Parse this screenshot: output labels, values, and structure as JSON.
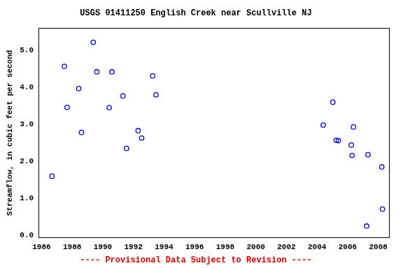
{
  "chart_data": {
    "type": "scatter",
    "title": "USGS 01411250 English Creek near Scullville NJ",
    "subtitle": "---- Provisional Data Subject to Revision ----",
    "y_label": "Streamflow, in cubic feet per second",
    "series": [
      {
        "name": "Streamflow",
        "color": "#0000cc",
        "marker": "open circle",
        "x": [
          1986.68,
          1987.49,
          1987.67,
          1988.43,
          1988.61,
          1989.38,
          1989.61,
          1990.42,
          1990.6,
          1991.32,
          1991.55,
          1992.31,
          1992.54,
          1993.26,
          1993.48,
          2004.4,
          2005.03,
          2005.25,
          2005.39,
          2006.24,
          2006.29,
          2006.38,
          2007.33,
          2007.24,
          2008.23,
          2008.27
        ],
        "values": [
          1.6,
          4.57,
          3.46,
          3.97,
          2.78,
          5.22,
          4.42,
          3.45,
          4.42,
          3.77,
          2.35,
          2.83,
          2.63,
          4.31,
          3.8,
          2.98,
          3.6,
          2.57,
          2.56,
          2.44,
          2.16,
          2.93,
          2.18,
          0.25,
          1.85,
          0.71
        ]
      }
    ],
    "xlim": [
      1985.8,
      2008.7
    ],
    "xticks": [
      1986,
      1988,
      1990,
      1992,
      1994,
      1996,
      1998,
      2000,
      2002,
      2004,
      2006,
      2008
    ],
    "ylim": [
      -0.06,
      5.6
    ],
    "yticks": [
      {
        "value": 0,
        "label": "0.0"
      },
      {
        "value": 1,
        "label": "1.0"
      },
      {
        "value": 2,
        "label": "2.0"
      },
      {
        "value": 3,
        "label": "3.0"
      },
      {
        "value": 4,
        "label": "4.0"
      },
      {
        "value": 5,
        "label": "5.0"
      }
    ],
    "grid": false
  }
}
